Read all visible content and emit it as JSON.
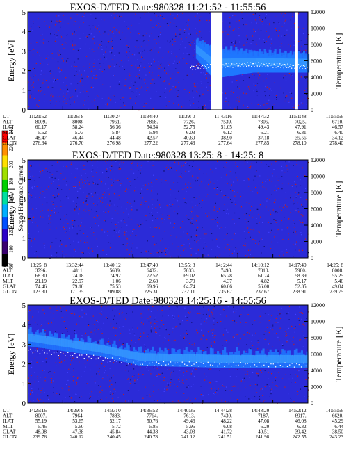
{
  "panels": [
    {
      "id": "panel-1",
      "title": "EXOS-D/TED   Date:980328   11:21:52 - 11:55:56",
      "ylabel_left": "Energy [eV]",
      "ylabel_right": "Temperature [K]",
      "eph_rows": [
        {
          "label": "UT",
          "values": [
            "11:21:52",
            "11:26: 8",
            "11:30:24",
            "11:34:40",
            "11:39: 0",
            "11:43:16",
            "11:47:32",
            "11:51:48",
            "11:55:56"
          ]
        },
        {
          "label": "ALT",
          "values": [
            "8009.",
            "8008.",
            "7961.",
            "7868.",
            "7726.",
            "7539.",
            "7305.",
            "7025.",
            "6710."
          ]
        },
        {
          "label": "ILAT",
          "values": [
            "60.17",
            "58.24",
            "56.36",
            "54.54",
            "52.75",
            "51.05",
            "49.43",
            "47.91",
            "46.57"
          ]
        },
        {
          "label": "MLT",
          "values": [
            "5.62",
            "5.73",
            "5.84",
            "5.94",
            "6.03",
            "6.12",
            "6.21",
            "6.31",
            "6.40"
          ]
        },
        {
          "label": "GLAT",
          "values": [
            "48.47",
            "46.44",
            "44.48",
            "42.57",
            "40.69",
            "38.90",
            "37.18",
            "35.56",
            "34.12"
          ]
        },
        {
          "label": "GLON",
          "values": [
            "276.34",
            "276.70",
            "276.98",
            "277.22",
            "277.43",
            "277.64",
            "277.85",
            "278.10",
            "278.40"
          ]
        }
      ]
    },
    {
      "id": "panel-2",
      "title": "EXOS-D/TED   Date:980328   13:25: 8 - 14:25: 8",
      "ylabel_left": "Energy [eV]",
      "ylabel_right": "Temperature [K]",
      "eph_rows": [
        {
          "label": "UT",
          "values": [
            "13:25: 8",
            "13:32:44",
            "13:40:12",
            "13:47:40",
            "13:55: 8",
            "14: 2:44",
            "14:10:12",
            "14:17:40",
            "14:25: 8"
          ]
        },
        {
          "label": "ALT",
          "values": [
            "3796.",
            "4811.",
            "5689.",
            "6432.",
            "7033.",
            "7498.",
            "7810.",
            "7980.",
            "8008."
          ]
        },
        {
          "label": "ILAT",
          "values": [
            "68.30",
            "74.18",
            "74.92",
            "72.52",
            "69.02",
            "65.28",
            "61.74",
            "58.39",
            "55.25"
          ]
        },
        {
          "label": "MLT",
          "values": [
            "21.19",
            "22.97",
            "1.06",
            "2.68",
            "3.70",
            "4.37",
            "4.82",
            "5.17",
            "5.46"
          ]
        },
        {
          "label": "GLAT",
          "values": [
            "74.46",
            "79.10",
            "75.53",
            "69.96",
            "64.74",
            "60.06",
            "56.00",
            "52.35",
            "49.04"
          ]
        },
        {
          "label": "GLON",
          "values": [
            "123.30",
            "171.35",
            "209.88",
            "225.31",
            "232.11",
            "235.67",
            "237.67",
            "238.91",
            "239.75"
          ]
        }
      ]
    },
    {
      "id": "panel-3",
      "title": "EXOS-D/TED   Date:980328   14:25:16 - 14:55:56",
      "ylabel_left": "Energy [eV]",
      "ylabel_right": "Temperature [K]",
      "eph_rows": [
        {
          "label": "UT",
          "values": [
            "14:25:16",
            "14:29: 8",
            "14:33: 0",
            "14:36:52",
            "14:40:36",
            "14:44:28",
            "14:48:20",
            "14:52:12",
            "14:55:56"
          ]
        },
        {
          "label": "ALT",
          "values": [
            "8007.",
            "7964.",
            "7883.",
            "7764.",
            "7613.",
            "7430.",
            "7187.",
            "6917.",
            "6620."
          ]
        },
        {
          "label": "ILAT",
          "values": [
            "55.19",
            "53.65",
            "52.17",
            "50.76",
            "49.46",
            "48.22",
            "47.08",
            "46.08",
            "45.29"
          ]
        },
        {
          "label": "MLT",
          "values": [
            "5.46",
            "5.60",
            "5.72",
            "5.85",
            "5.96",
            "6.08",
            "6.20",
            "6.32",
            "6.44"
          ]
        },
        {
          "label": "GLAT",
          "values": [
            "48.98",
            "47.38",
            "45.84",
            "44.38",
            "43.03",
            "41.72",
            "40.51",
            "39.42",
            "38.50"
          ]
        },
        {
          "label": "GLON",
          "values": [
            "239.76",
            "240.12",
            "240.45",
            "240.78",
            "241.12",
            "241.51",
            "241.98",
            "242.55",
            "243.23"
          ]
        }
      ]
    }
  ],
  "colorbar": {
    "label": "Second Harmonic Current",
    "ticks": [
      "80",
      "100",
      "120",
      "140",
      "160",
      "180",
      "200",
      "220",
      "240"
    ],
    "colors": [
      "#000000",
      "#3a0070",
      "#2b00c8",
      "#0050ff",
      "#00b0ff",
      "#00e0a0",
      "#00d000",
      "#a0e000",
      "#ffe000",
      "#ff9000",
      "#ff0000"
    ]
  },
  "chart_data": [
    {
      "type": "heatmap",
      "title": "EXOS-D/TED   Date:980328   11:21:52 - 11:55:56",
      "xlabel": "UT",
      "ylabel": "Energy [eV]",
      "ylabel_right": "Temperature [K]",
      "x_ticks": [
        "11:21:52",
        "11:26: 8",
        "11:30:24",
        "11:34:40",
        "11:39: 0",
        "11:43:16",
        "11:47:32",
        "11:51:48",
        "11:55:56"
      ],
      "ylim": [
        0,
        5
      ],
      "y_ticks": [
        0,
        1,
        2,
        3,
        4,
        5
      ],
      "ylim_right": [
        0,
        12000
      ],
      "y_ticks_right": [
        0,
        2000,
        4000,
        6000,
        8000,
        10000,
        12000
      ],
      "background_color": "#2b2bd8",
      "band_color": "#1e78ff",
      "band": [
        {
          "x": 0.6,
          "lo": 2.6,
          "hi": 3.5
        },
        {
          "x": 0.66,
          "lo": 1.6,
          "hi": 3.1
        },
        {
          "x": 0.8,
          "lo": 1.9,
          "hi": 2.9
        },
        {
          "x": 1.0,
          "lo": 1.9,
          "hi": 2.8
        }
      ],
      "temperature_trace": [
        {
          "x": 0.58,
          "t": 5200
        },
        {
          "x": 0.66,
          "t": 5400
        },
        {
          "x": 0.8,
          "t": 5600
        },
        {
          "x": 1.0,
          "t": 5300
        }
      ],
      "data_gaps": [
        {
          "x0": 0.655,
          "x1": 0.695,
          "lo": 0,
          "hi": 5
        },
        {
          "x0": 0.955,
          "x1": 0.965,
          "lo": 0,
          "hi": 5
        }
      ]
    },
    {
      "type": "heatmap",
      "title": "EXOS-D/TED   Date:980328   13:25: 8 - 14:25: 8",
      "xlabel": "UT",
      "ylabel": "Energy [eV]",
      "ylabel_right": "Temperature [K]",
      "x_ticks": [
        "13:25: 8",
        "13:32:44",
        "13:40:12",
        "13:47:40",
        "13:55: 8",
        "14: 2:44",
        "14:10:12",
        "14:17:40",
        "14:25: 8"
      ],
      "ylim": [
        0,
        5
      ],
      "y_ticks": [
        0,
        1,
        2,
        3,
        4,
        5
      ],
      "ylim_right": [
        0,
        12000
      ],
      "y_ticks_right": [
        0,
        2000,
        4000,
        6000,
        8000,
        10000,
        12000
      ],
      "background_color": "#2b2bd8",
      "band_color": "#1e78ff",
      "band": [],
      "temperature_trace": [],
      "data_gaps": []
    },
    {
      "type": "heatmap",
      "title": "EXOS-D/TED   Date:980328   14:25:16 - 14:55:56",
      "xlabel": "UT",
      "ylabel": "Energy [eV]",
      "ylabel_right": "Temperature [K]",
      "x_ticks": [
        "14:25:16",
        "14:29: 8",
        "14:33: 0",
        "14:36:52",
        "14:40:36",
        "14:44:28",
        "14:48:20",
        "14:52:12",
        "14:55:56"
      ],
      "ylim": [
        0,
        5
      ],
      "y_ticks": [
        0,
        1,
        2,
        3,
        4,
        5
      ],
      "ylim_right": [
        0,
        12000
      ],
      "y_ticks_right": [
        0,
        2000,
        4000,
        6000,
        8000,
        10000,
        12000
      ],
      "background_color": "#2b2bd8",
      "band_color": "#1e78ff",
      "band": [
        {
          "x": 0.0,
          "lo": 2.9,
          "hi": 3.7
        },
        {
          "x": 0.25,
          "lo": 2.4,
          "hi": 3.1
        },
        {
          "x": 0.4,
          "lo": 1.9,
          "hi": 2.7
        },
        {
          "x": 0.7,
          "lo": 1.8,
          "hi": 2.6
        },
        {
          "x": 1.0,
          "lo": 1.8,
          "hi": 2.6
        }
      ],
      "temperature_trace": [
        {
          "x": 0.0,
          "t": 6500
        },
        {
          "x": 0.25,
          "t": 5600
        },
        {
          "x": 0.4,
          "t": 4900
        },
        {
          "x": 1.0,
          "t": 4700
        }
      ],
      "data_gaps": []
    }
  ]
}
